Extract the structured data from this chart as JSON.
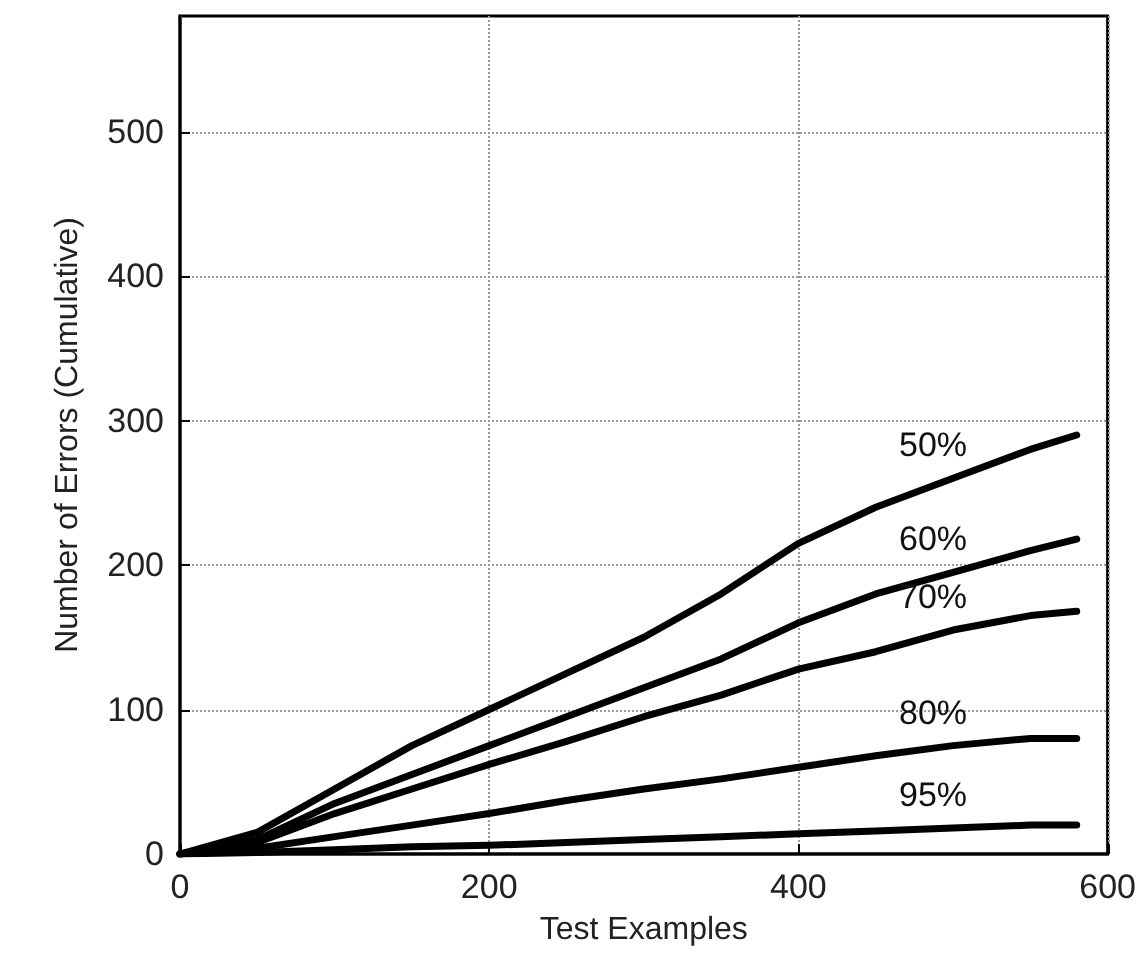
{
  "chart_data": {
    "type": "line",
    "xlabel": "Test Examples",
    "ylabel": "Number of Errors (Cumulative)",
    "x": [
      0,
      50,
      100,
      150,
      200,
      250,
      300,
      350,
      400,
      450,
      500,
      550,
      580
    ],
    "series": [
      {
        "name": "50%",
        "color": "#000000",
        "values": [
          0,
          15,
          45,
          75,
          100,
          125,
          150,
          180,
          215,
          240,
          260,
          280,
          290
        ]
      },
      {
        "name": "60%",
        "color": "#000000",
        "values": [
          0,
          10,
          35,
          55,
          75,
          95,
          115,
          135,
          160,
          180,
          195,
          210,
          218
        ]
      },
      {
        "name": "70%",
        "color": "#000000",
        "values": [
          0,
          8,
          28,
          45,
          62,
          78,
          95,
          110,
          128,
          140,
          155,
          165,
          168
        ]
      },
      {
        "name": "80%",
        "color": "#000000",
        "values": [
          0,
          4,
          12,
          20,
          28,
          37,
          45,
          52,
          60,
          68,
          75,
          80,
          80
        ]
      },
      {
        "name": "95%",
        "color": "#000000",
        "values": [
          0,
          1,
          3,
          5,
          6,
          8,
          10,
          12,
          14,
          16,
          18,
          20,
          20
        ]
      }
    ],
    "xlim": [
      0,
      600
    ],
    "xticks": [
      0,
      200,
      400,
      600
    ],
    "ylim": [
      0,
      580
    ],
    "yticks": [
      0,
      100,
      200,
      300,
      400,
      500
    ],
    "grid": true,
    "marker": "none",
    "line_style": "solid",
    "legend": false
  }
}
